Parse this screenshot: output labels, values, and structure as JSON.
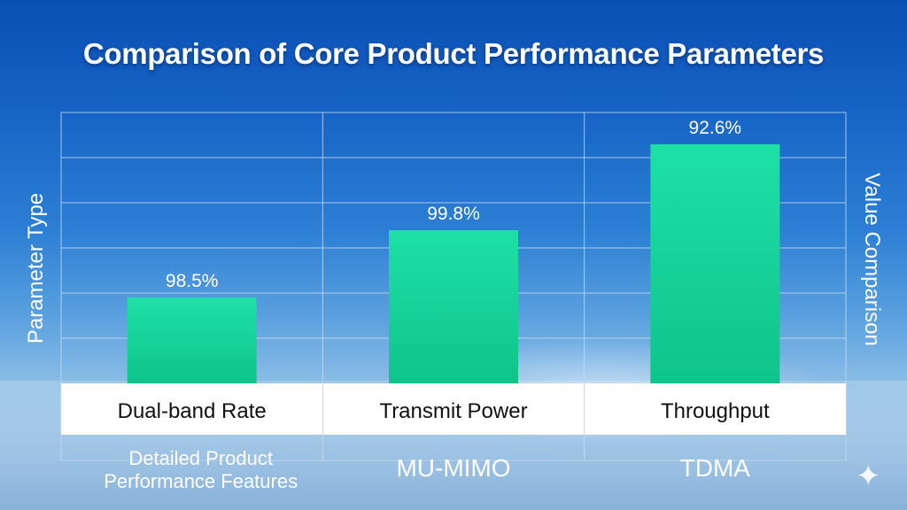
{
  "title": "Comparison of Core Product Performance Parameters",
  "left_axis_title": "Parameter Type",
  "right_axis_title": "Value Comparison",
  "colors": {
    "bar_top": "#1ee0a6",
    "bar_bottom": "#0fc48a",
    "grid": "#c9dcf0",
    "category_band": "#ffffff"
  },
  "sparkle_icon": "sparkle-icon",
  "chart_data": {
    "type": "bar",
    "title": "Comparison of Core Product Performance Parameters",
    "ylabel": "Parameter Type",
    "ylabel_right": "Value Comparison",
    "categories": [
      "Dual-band Rate",
      "Transmit Power",
      "Throughput"
    ],
    "values": [
      98.5,
      99.8,
      92.6
    ],
    "value_labels": [
      "98.5%",
      "99.8%",
      "92.6%"
    ],
    "secondary_labels": [
      "Detailed Product\nPerformance Features",
      "MU-MIMO",
      "TDMA"
    ],
    "grid": true,
    "legend": "none"
  }
}
